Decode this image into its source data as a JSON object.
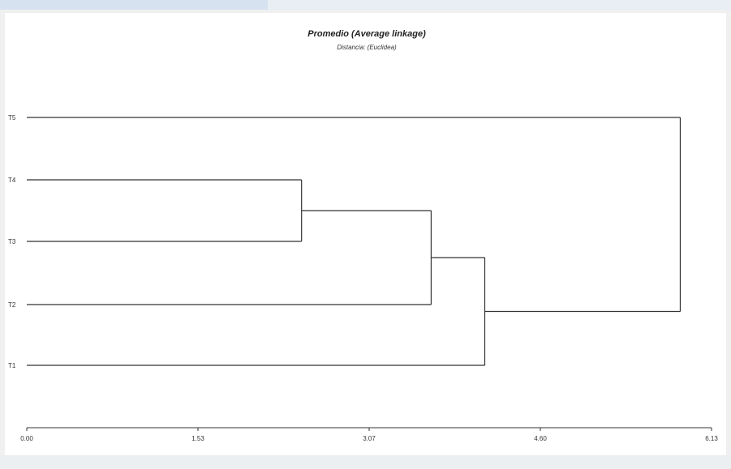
{
  "chart_data": {
    "type": "dendrogram",
    "title": "Promedio (Average linkage)",
    "subtitle": "Distancia: (Euclidea)",
    "leaves": [
      "T5",
      "T4",
      "T3",
      "T2",
      "T1"
    ],
    "xlim": [
      0,
      6.13
    ],
    "x_ticks": [
      "0.00",
      "1.53",
      "3.07",
      "4.60",
      "6.13"
    ],
    "merges": [
      {
        "id": "c1",
        "children": [
          "T4",
          "T3"
        ],
        "height": 2.46
      },
      {
        "id": "c2",
        "children": [
          "c1",
          "T2"
        ],
        "height": 3.62
      },
      {
        "id": "c3",
        "children": [
          "c2",
          "T1"
        ],
        "height": 4.1
      },
      {
        "id": "c4",
        "children": [
          "T5",
          "c3"
        ],
        "height": 5.85
      }
    ]
  }
}
